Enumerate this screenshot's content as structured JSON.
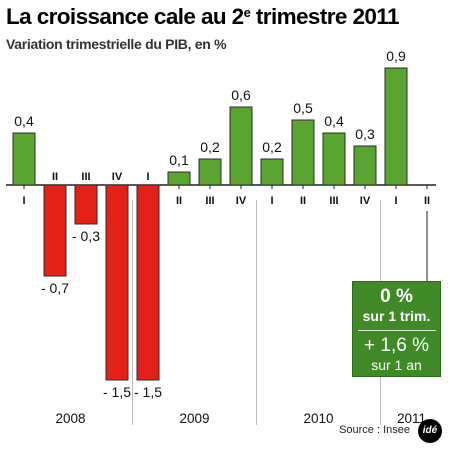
{
  "header": {
    "title_main": "La croissance cale au 2",
    "title_sup": "e",
    "title_end": " trimestre 2011",
    "subtitle": "Variation trimestrielle du PIB, en %"
  },
  "callout": {
    "line1": "0 %",
    "line2": "sur 1 trim.",
    "line3": "+ 1,6 %",
    "line4": "sur 1 an"
  },
  "source": "Source : Insee",
  "logo_text": "idé",
  "colors": {
    "positive": "#5aa531",
    "negative": "#e32119",
    "bar_stroke": "#2b2b2b",
    "axis": "#222222",
    "callout_bg": "#3f8a26"
  },
  "chart_data": {
    "type": "bar",
    "title": "La croissance cale au 2e trimestre 2011",
    "subtitle": "Variation trimestrielle du PIB, en %",
    "unit": "%",
    "ylim": [
      -1.5,
      0.9
    ],
    "grid": false,
    "categories": [
      "I",
      "II",
      "III",
      "IV",
      "I",
      "II",
      "III",
      "IV",
      "I",
      "II",
      "III",
      "IV",
      "I",
      "II"
    ],
    "values": [
      0.4,
      -0.7,
      -0.3,
      -1.5,
      -1.5,
      0.1,
      0.2,
      0.6,
      0.2,
      0.5,
      0.4,
      0.3,
      0.9,
      0.0
    ],
    "labels": [
      "0,4",
      "- 0,7",
      "- 0,3",
      "- 1,5",
      "- 1,5",
      "0,1",
      "0,2",
      "0,6",
      "0,2",
      "0,5",
      "0,4",
      "0,3",
      "0,9",
      ""
    ],
    "years": [
      {
        "label": "2008",
        "first": 0,
        "last": 3
      },
      {
        "label": "2009",
        "first": 4,
        "last": 7
      },
      {
        "label": "2010",
        "first": 8,
        "last": 11
      },
      {
        "label": "2011",
        "first": 12,
        "last": 13
      }
    ]
  }
}
